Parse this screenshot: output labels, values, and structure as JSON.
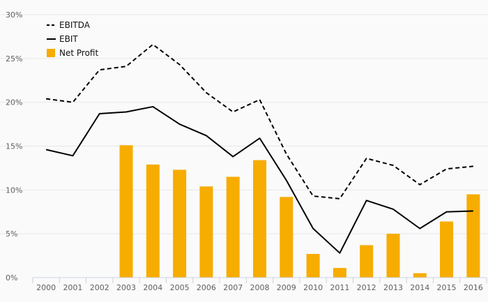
{
  "chart_data": {
    "type": "bar",
    "categories": [
      "2000",
      "2001",
      "2002",
      "2003",
      "2004",
      "2005",
      "2006",
      "2007",
      "2008",
      "2009",
      "2010",
      "2011",
      "2012",
      "2013",
      "2014",
      "2015",
      "2016"
    ],
    "ylim": [
      0,
      30
    ],
    "yticks": [
      0,
      5,
      10,
      15,
      20,
      25,
      30
    ],
    "ytick_labels": [
      "0%",
      "5%",
      "10%",
      "15%",
      "20%",
      "25%",
      "30%"
    ],
    "grid": true,
    "legend_position": "top-left",
    "series": [
      {
        "name": "EBITDA",
        "kind": "line",
        "style": "dashed",
        "color": "#000000",
        "values": [
          20.4,
          20.0,
          23.7,
          24.1,
          26.6,
          24.3,
          21.1,
          18.9,
          20.3,
          14.1,
          9.3,
          9.0,
          13.6,
          12.8,
          10.6,
          12.4,
          12.7
        ]
      },
      {
        "name": "EBIT",
        "kind": "line",
        "style": "solid",
        "color": "#000000",
        "values": [
          14.6,
          13.9,
          18.7,
          18.9,
          19.5,
          17.5,
          16.2,
          13.8,
          15.9,
          11.1,
          5.6,
          2.8,
          8.8,
          7.8,
          5.6,
          7.5,
          7.6
        ]
      },
      {
        "name": "Net Profit",
        "kind": "bar",
        "color": "#f7ac00",
        "values": [
          0,
          0,
          0,
          15.1,
          12.9,
          12.3,
          10.4,
          11.5,
          13.4,
          9.2,
          2.7,
          1.1,
          3.7,
          5.0,
          0.5,
          6.4,
          9.5
        ]
      }
    ]
  }
}
